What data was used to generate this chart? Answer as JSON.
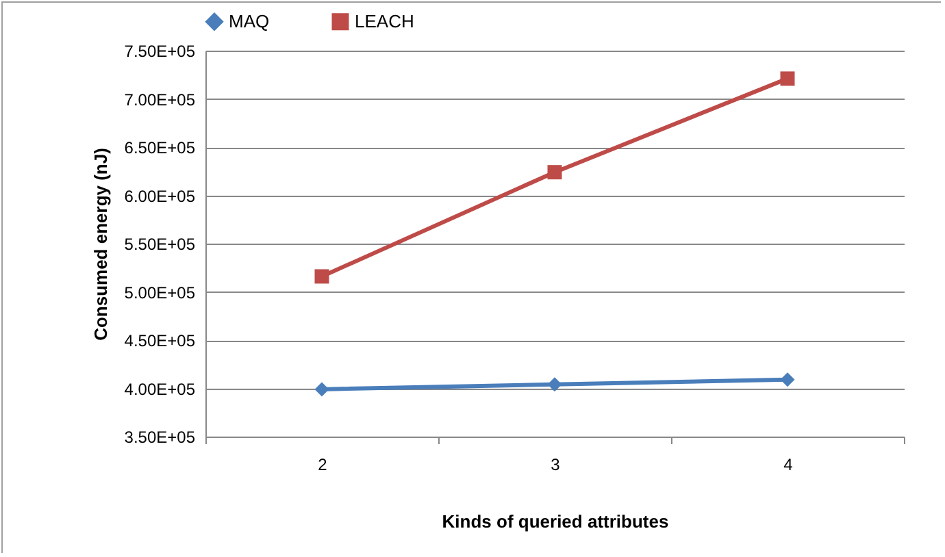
{
  "chart_data": {
    "type": "line",
    "xlabel": "Kinds of queried attributes",
    "ylabel": "Consumed energy (nJ)",
    "categories": [
      "2",
      "3",
      "4"
    ],
    "series": [
      {
        "name": "MAQ",
        "color": "#4a7ebb",
        "marker": "diamond",
        "values": [
          399000,
          404000,
          409000
        ]
      },
      {
        "name": "LEACH",
        "color": "#be4b48",
        "marker": "square",
        "values": [
          516000,
          624000,
          721000
        ]
      }
    ],
    "ylim": [
      350000,
      750000
    ],
    "yticks": [
      {
        "value": 350000,
        "label": "3.50E+05"
      },
      {
        "value": 400000,
        "label": "4.00E+05"
      },
      {
        "value": 450000,
        "label": "4.50E+05"
      },
      {
        "value": 500000,
        "label": "5.00E+05"
      },
      {
        "value": 550000,
        "label": "5.50E+05"
      },
      {
        "value": 600000,
        "label": "6.00E+05"
      },
      {
        "value": 650000,
        "label": "6.50E+05"
      },
      {
        "value": 700000,
        "label": "7.00E+05"
      },
      {
        "value": 750000,
        "label": "7.50E+05"
      }
    ],
    "grid": "y",
    "legend": "top"
  }
}
